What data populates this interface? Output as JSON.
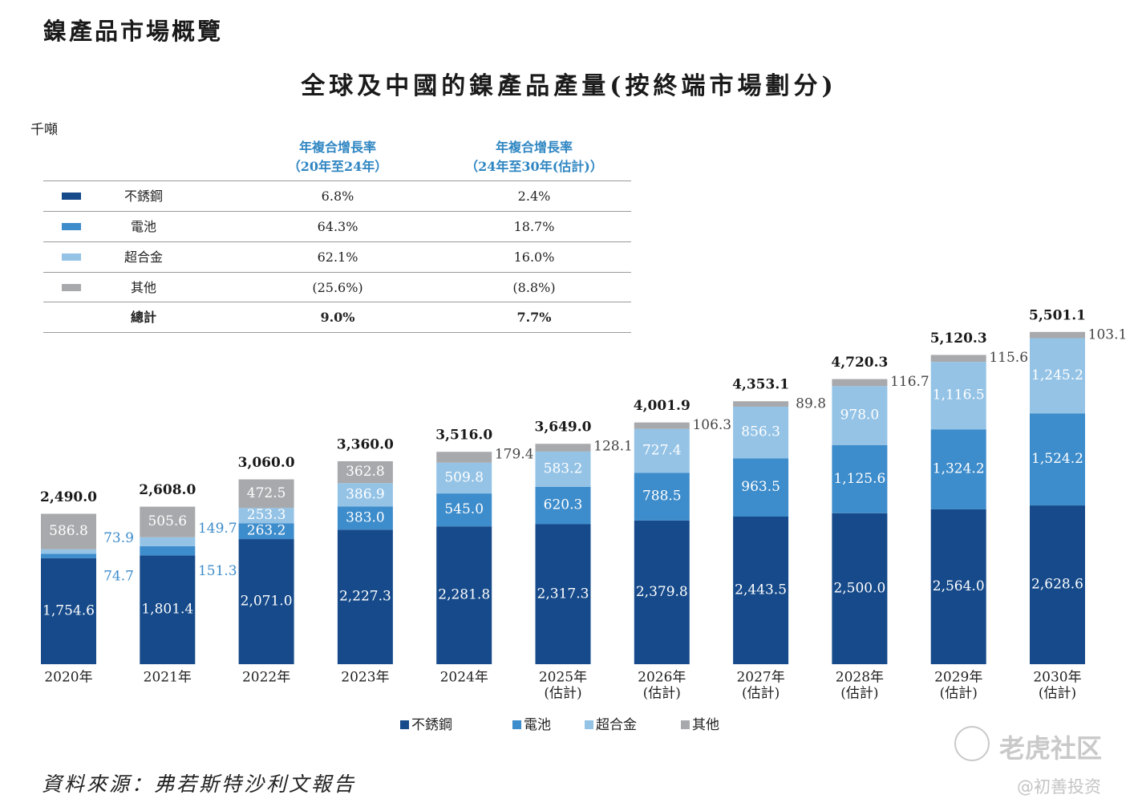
{
  "section_title": "鎳產品市場概覽",
  "unit": "千噸",
  "cagr_table": {
    "headers": [
      {
        "line1": "年複合增長率",
        "line2": "（20年至24年）"
      },
      {
        "line1": "年複合增長率",
        "line2": "（24年至30年(估計)）"
      }
    ],
    "rows": [
      {
        "label": "不銹鋼",
        "swatch": "#164a8a",
        "v1": "6.8%",
        "v2": "2.4%"
      },
      {
        "label": "電池",
        "swatch": "#3d8ccb",
        "v1": "64.3%",
        "v2": "18.7%"
      },
      {
        "label": "超合金",
        "swatch": "#94c3e6",
        "v1": "62.1%",
        "v2": "16.0%"
      },
      {
        "label": "其他",
        "swatch": "#a7a9ac",
        "v1": "(25.6%)",
        "v2": "(8.8%)"
      },
      {
        "label": "總計",
        "swatch": "",
        "v1": "9.0%",
        "v2": "7.7%"
      }
    ]
  },
  "chart_data": {
    "type": "bar",
    "stacked": true,
    "title": "全球及中國的鎳產品產量(按終端市場劃分)",
    "ylabel": "千噸",
    "categories": [
      [
        "2020年"
      ],
      [
        "2021年"
      ],
      [
        "2022年"
      ],
      [
        "2023年"
      ],
      [
        "2024年"
      ],
      [
        "2025年",
        "(估計)"
      ],
      [
        "2026年",
        "(估計)"
      ],
      [
        "2027年",
        "(估計)"
      ],
      [
        "2028年",
        "(估計)"
      ],
      [
        "2029年",
        "(估計)"
      ],
      [
        "2030年",
        "(估計)"
      ]
    ],
    "series": [
      {
        "name": "不銹鋼",
        "color": "#164a8a",
        "values": [
          1754.6,
          1801.4,
          2071.0,
          2227.3,
          2281.8,
          2317.3,
          2379.8,
          2443.5,
          2500.0,
          2564.0,
          2628.6
        ],
        "labels": [
          "1,754.6",
          "1,801.4",
          "2,071.0",
          "2,227.3",
          "2,281.8",
          "2,317.3",
          "2,379.8",
          "2,443.5",
          "2,500.0",
          "2,564.0",
          "2,628.6"
        ]
      },
      {
        "name": "電池",
        "color": "#3d8ccb",
        "values": [
          74.7,
          151.3,
          263.2,
          383.0,
          545.0,
          620.3,
          788.5,
          963.5,
          1125.6,
          1324.2,
          1524.2
        ],
        "labels": [
          "74.7",
          "151.3",
          "263.2",
          "383.0",
          "545.0",
          "620.3",
          "788.5",
          "963.5",
          "1,125.6",
          "1,324.2",
          "1,524.2"
        ]
      },
      {
        "name": "超合金",
        "color": "#94c3e6",
        "values": [
          73.9,
          149.7,
          253.3,
          386.9,
          509.8,
          583.2,
          727.4,
          856.3,
          978.0,
          1116.5,
          1245.2
        ],
        "labels": [
          "73.9",
          "149.7",
          "253.3",
          "386.9",
          "509.8",
          "583.2",
          "727.4",
          "856.3",
          "978.0",
          "1,116.5",
          "1,245.2"
        ]
      },
      {
        "name": "其他",
        "color": "#a7a9ac",
        "values": [
          586.8,
          505.6,
          472.5,
          362.8,
          179.4,
          128.1,
          106.3,
          89.8,
          116.7,
          115.6,
          103.1
        ],
        "labels": [
          "586.8",
          "505.6",
          "472.5",
          "362.8",
          "179.4",
          "128.1",
          "106.3",
          "89.8",
          "116.7",
          "115.6",
          "103.1"
        ]
      }
    ],
    "totals": [
      2490.0,
      2608.0,
      3060.0,
      3360.0,
      3516.0,
      3649.0,
      4001.9,
      4353.1,
      4720.3,
      5120.3,
      5501.1
    ],
    "total_labels": [
      "2,490.0",
      "2,608.0",
      "3,060.0",
      "3,360.0",
      "3,516.0",
      "3,649.0",
      "4,001.9",
      "4,353.1",
      "4,720.3",
      "5,120.3",
      "5,501.1"
    ],
    "legend": [
      "不銹鋼",
      "電池",
      "超合金",
      "其他"
    ],
    "legend_position": "bottom",
    "grid": false
  },
  "source": "資料來源：弗若斯特沙利文報告",
  "watermark": {
    "line1": "老虎社区",
    "line2": "@初善投资"
  }
}
